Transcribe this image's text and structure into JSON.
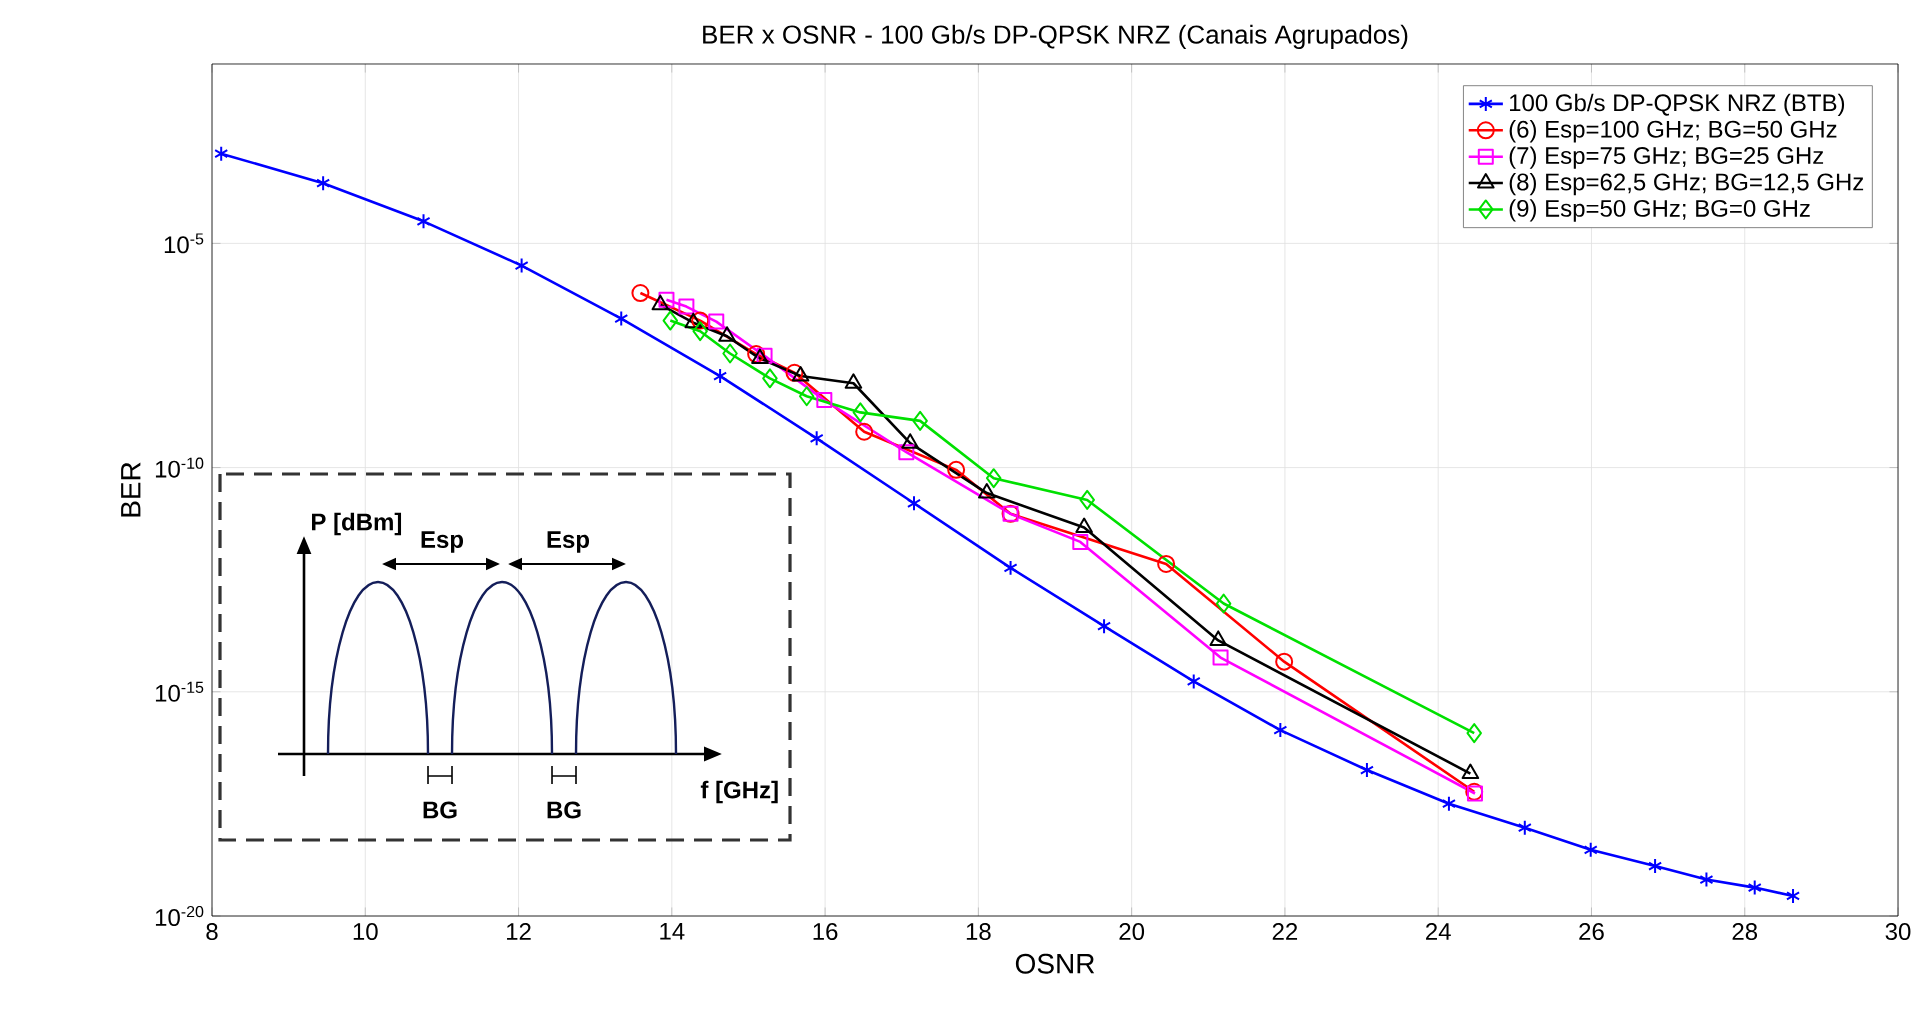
{
  "chart_data": {
    "type": "line",
    "title": "BER x OSNR - 100 Gb/s DP-QPSK NRZ (Canais Agrupados)",
    "xlabel": "OSNR",
    "ylabel": "BER",
    "log": "y",
    "grid": true,
    "legend": "top right",
    "xlim": [
      8,
      30
    ],
    "xticks": [
      8,
      10,
      12,
      14,
      16,
      18,
      20,
      22,
      24,
      26,
      28,
      30
    ],
    "ylim": [
      1e-20,
      0.1
    ],
    "yticks": [
      {
        "value": 1e-05,
        "label": "10$^{-5}$"
      },
      {
        "value": 1e-10,
        "label": "10$^{-10}$"
      },
      {
        "value": 1e-15,
        "label": "10$^{-15}$"
      },
      {
        "value": 1e-20,
        "label": "10$^{-20}$"
      }
    ],
    "annotations": [
      "P [dBm]",
      "Esp",
      "Esp",
      "BG",
      "BG",
      "f [GHz]"
    ],
    "series": [
      {
        "name": "100 Gb/s DP-QPSK NRZ (BTB)",
        "color": "#0000ff",
        "marker": "cross",
        "x": [
          8.12,
          9.45,
          10.76,
          12.04,
          13.34,
          14.63,
          15.89,
          17.16,
          18.42,
          19.64,
          20.81,
          21.94,
          23.07,
          24.14,
          25.13,
          25.99,
          26.83,
          27.5,
          28.13,
          28.63
        ],
        "values": [
          0.001,
          0.00022,
          3.1e-05,
          3.2e-06,
          2.1e-07,
          1.1e-08,
          4.5e-10,
          1.6e-11,
          5.8e-13,
          2.9e-14,
          1.7e-15,
          1.4e-16,
          1.8e-17,
          3.2e-18,
          9.3e-19,
          3e-19,
          1.3e-19,
          6.5e-20,
          4.3e-20,
          2.8e-20
        ]
      },
      {
        "name": "(6) Esp=100 GHz; BG=50 GHz",
        "color": "#ff0000",
        "marker": "circle",
        "x": [
          13.59,
          14.37,
          15.1,
          15.6,
          16.51,
          17.71,
          18.42,
          20.45,
          21.99,
          24.47
        ],
        "values": [
          7.8e-07,
          1.9e-07,
          3.4e-08,
          1.3e-08,
          6.3e-10,
          8.9e-11,
          9.3e-12,
          7.1e-13,
          4.7e-15,
          5.9e-18
        ]
      },
      {
        "name": "(7) Esp=75 GHz; BG=25 GHz",
        "color": "#ff00ff",
        "marker": "square",
        "x": [
          13.93,
          14.19,
          14.58,
          15.21,
          15.99,
          17.06,
          18.42,
          19.33,
          21.16,
          24.48
        ],
        "values": [
          5.5e-07,
          3.9e-07,
          1.8e-07,
          3.1e-08,
          3.2e-09,
          2.2e-10,
          9.3e-12,
          2.2e-12,
          5.8e-15,
          5.4e-18
        ]
      },
      {
        "name": "(8) Esp=62,5 GHz; BG=12,5 GHz",
        "color": "#000000",
        "marker": "triangle",
        "x": [
          13.85,
          14.28,
          14.72,
          15.15,
          15.68,
          16.37,
          17.11,
          18.11,
          19.38,
          21.13,
          24.42
        ],
        "values": [
          4.3e-07,
          1.7e-07,
          8.5e-08,
          2.7e-08,
          1.1e-08,
          7.6e-09,
          3.5e-10,
          2.7e-11,
          4.6e-12,
          1.4e-14,
          1.5e-17
        ]
      },
      {
        "name": "(9) Esp=50 GHz; BG=0 GHz",
        "color": "#00e000",
        "marker": "diamond",
        "x": [
          13.98,
          14.37,
          14.76,
          15.28,
          15.76,
          16.46,
          17.24,
          18.2,
          19.42,
          21.2,
          24.47
        ],
        "values": [
          1.9e-07,
          1.1e-07,
          3.5e-08,
          9.8e-09,
          3.9e-09,
          1.7e-09,
          1.1e-09,
          5.8e-11,
          1.9e-11,
          9.3e-14,
          1.2e-16
        ]
      }
    ]
  }
}
